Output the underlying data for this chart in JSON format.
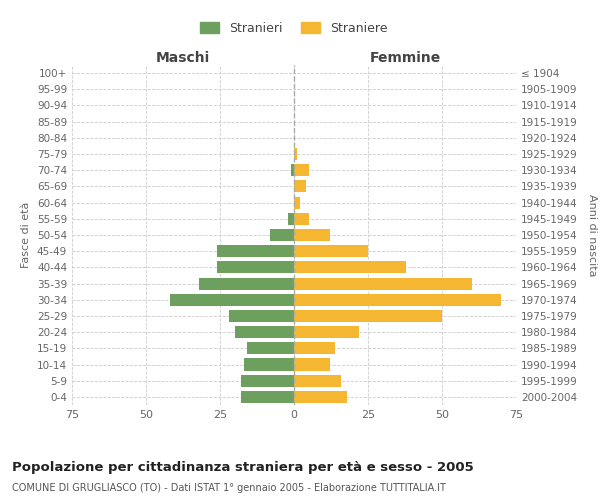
{
  "age_groups": [
    "100+",
    "95-99",
    "90-94",
    "85-89",
    "80-84",
    "75-79",
    "70-74",
    "65-69",
    "60-64",
    "55-59",
    "50-54",
    "45-49",
    "40-44",
    "35-39",
    "30-34",
    "25-29",
    "20-24",
    "15-19",
    "10-14",
    "5-9",
    "0-4"
  ],
  "birth_years": [
    "≤ 1904",
    "1905-1909",
    "1910-1914",
    "1915-1919",
    "1920-1924",
    "1925-1929",
    "1930-1934",
    "1935-1939",
    "1940-1944",
    "1945-1949",
    "1950-1954",
    "1955-1959",
    "1960-1964",
    "1965-1969",
    "1970-1974",
    "1975-1979",
    "1980-1984",
    "1985-1989",
    "1990-1994",
    "1995-1999",
    "2000-2004"
  ],
  "males": [
    0,
    0,
    0,
    0,
    0,
    0,
    1,
    0,
    0,
    2,
    8,
    26,
    26,
    32,
    42,
    22,
    20,
    16,
    17,
    18,
    18
  ],
  "females": [
    0,
    0,
    0,
    0,
    0,
    1,
    5,
    4,
    2,
    5,
    12,
    25,
    38,
    60,
    70,
    50,
    22,
    14,
    12,
    16,
    18
  ],
  "male_color": "#6d9f5e",
  "female_color": "#f5b731",
  "xlim": 75,
  "xlabel_left": "Maschi",
  "xlabel_right": "Femmine",
  "ylabel_left": "Fasce di età",
  "ylabel_right": "Anni di nascita",
  "legend_male": "Stranieri",
  "legend_female": "Straniere",
  "title": "Popolazione per cittadinanza straniera per età e sesso - 2005",
  "subtitle": "COMUNE DI GRUGLIASCO (TO) - Dati ISTAT 1° gennaio 2005 - Elaborazione TUTTITALIA.IT",
  "grid_color": "#cccccc",
  "bg_color": "#ffffff",
  "bar_height": 0.75
}
